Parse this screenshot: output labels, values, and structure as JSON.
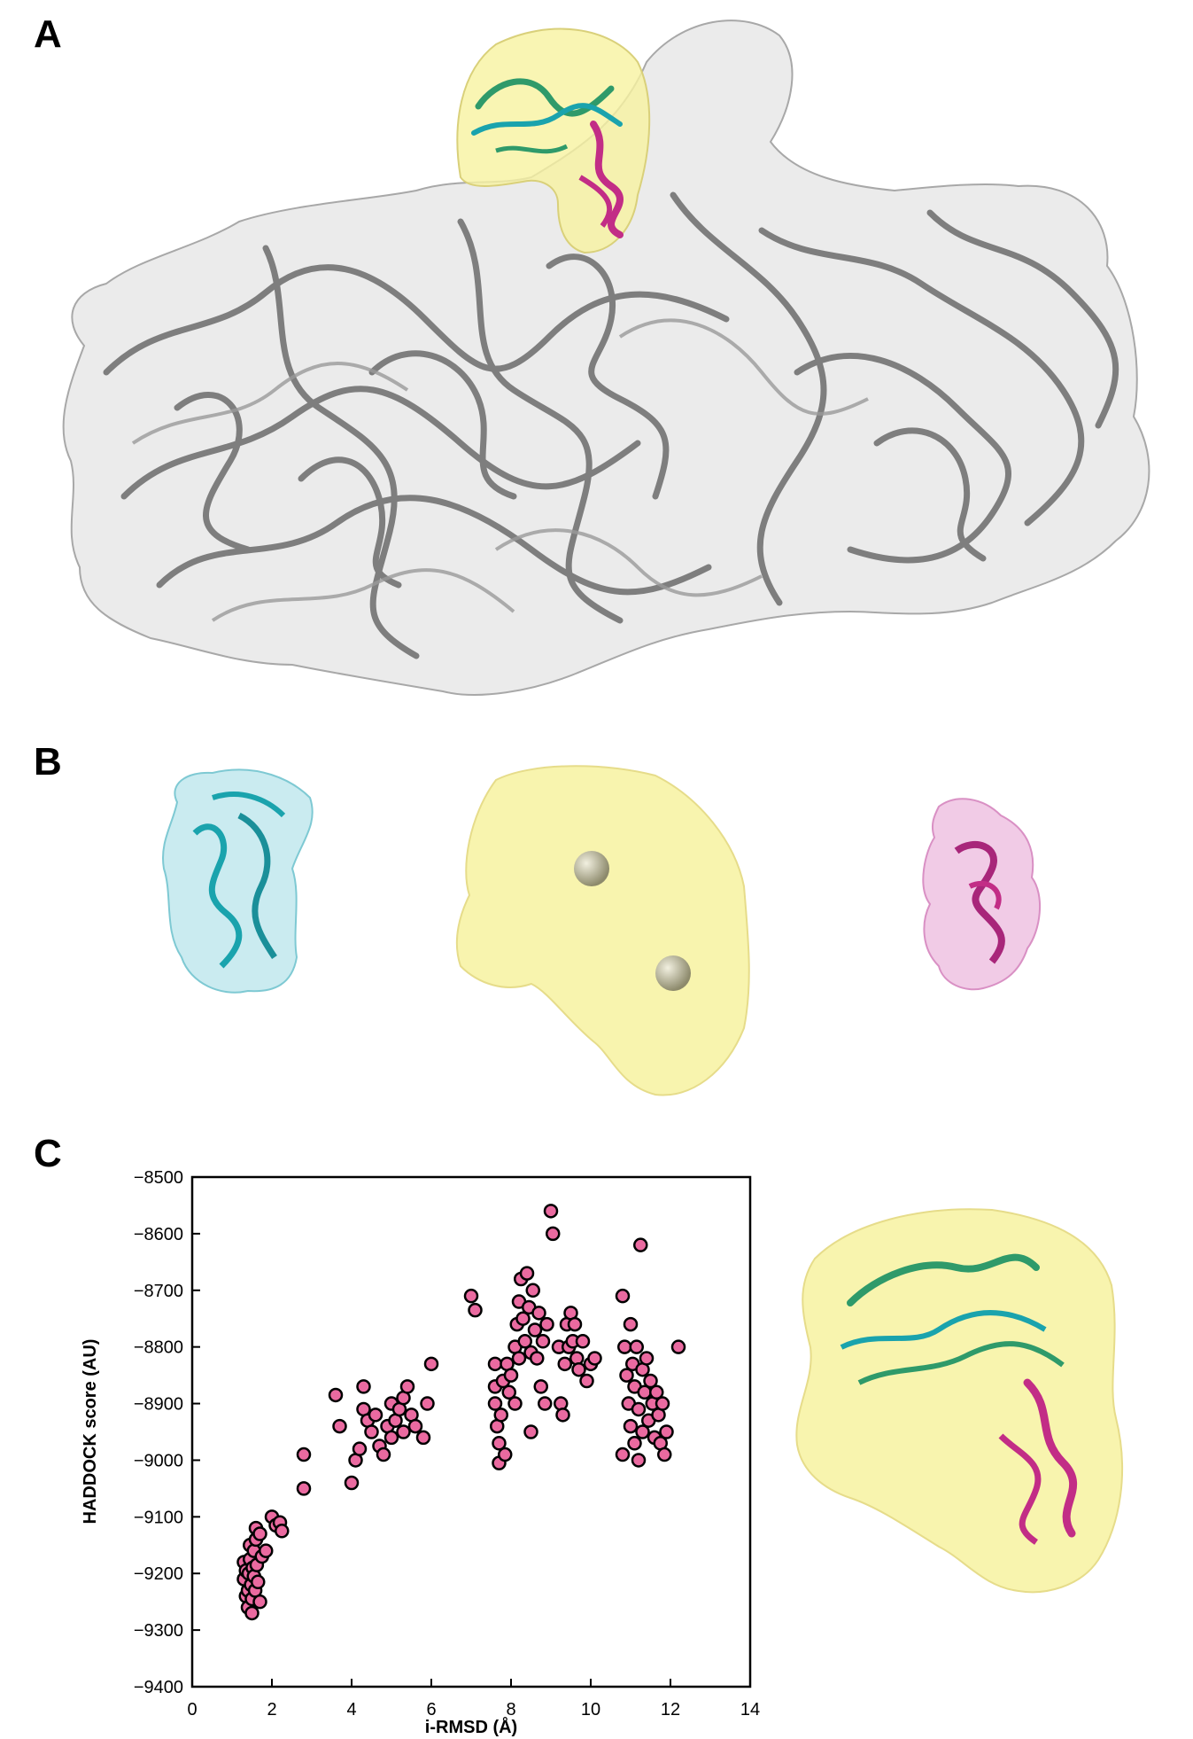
{
  "panels": {
    "a": "A",
    "b": "B",
    "c": "C"
  },
  "colors": {
    "density_gray": "#e4e4e4",
    "ribbon_gray": "#6b6b6b",
    "map_yellow": "#f7f2a0",
    "domain_cyan": "#1aa3ad",
    "domain_green": "#2f9a6a",
    "domain_magenta": "#c22d86",
    "point_fill": "#ea6aa0"
  },
  "chart_data": {
    "type": "scatter",
    "xlabel": "i-RMSD (Å)",
    "ylabel": "HADDOCK score (AU)",
    "xlim": [
      0,
      14
    ],
    "ylim": [
      -9400,
      -8500
    ],
    "xticks": [
      0,
      2,
      4,
      6,
      8,
      10,
      12,
      14
    ],
    "yticks": [
      -8500,
      -8600,
      -8700,
      -8800,
      -8900,
      -9000,
      -9100,
      -9200,
      -9300,
      -9400
    ],
    "grid": false,
    "legend": "none",
    "series": [
      {
        "points": [
          [
            1.3,
            -9180
          ],
          [
            1.3,
            -9210
          ],
          [
            1.35,
            -9240
          ],
          [
            1.35,
            -9195
          ],
          [
            1.4,
            -9230
          ],
          [
            1.4,
            -9260
          ],
          [
            1.42,
            -9200
          ],
          [
            1.45,
            -9150
          ],
          [
            1.45,
            -9175
          ],
          [
            1.48,
            -9220
          ],
          [
            1.5,
            -9270
          ],
          [
            1.5,
            -9245
          ],
          [
            1.52,
            -9190
          ],
          [
            1.55,
            -9160
          ],
          [
            1.55,
            -9205
          ],
          [
            1.58,
            -9230
          ],
          [
            1.6,
            -9120
          ],
          [
            1.6,
            -9140
          ],
          [
            1.62,
            -9185
          ],
          [
            1.65,
            -9215
          ],
          [
            1.7,
            -9130
          ],
          [
            1.7,
            -9250
          ],
          [
            1.75,
            -9170
          ],
          [
            1.85,
            -9160
          ],
          [
            2.0,
            -9100
          ],
          [
            2.1,
            -9115
          ],
          [
            2.2,
            -9110
          ],
          [
            2.25,
            -9125
          ],
          [
            2.8,
            -8990
          ],
          [
            2.8,
            -9050
          ],
          [
            3.6,
            -8885
          ],
          [
            3.7,
            -8940
          ],
          [
            4.0,
            -9040
          ],
          [
            4.1,
            -9000
          ],
          [
            4.2,
            -8980
          ],
          [
            4.3,
            -8870
          ],
          [
            4.3,
            -8910
          ],
          [
            4.4,
            -8930
          ],
          [
            4.5,
            -8950
          ],
          [
            4.6,
            -8920
          ],
          [
            4.7,
            -8975
          ],
          [
            4.8,
            -8990
          ],
          [
            4.9,
            -8940
          ],
          [
            5.0,
            -8900
          ],
          [
            5.0,
            -8960
          ],
          [
            5.1,
            -8930
          ],
          [
            5.2,
            -8910
          ],
          [
            5.3,
            -8890
          ],
          [
            5.3,
            -8950
          ],
          [
            5.4,
            -8870
          ],
          [
            5.5,
            -8920
          ],
          [
            5.6,
            -8940
          ],
          [
            5.8,
            -8960
          ],
          [
            5.9,
            -8900
          ],
          [
            6.0,
            -8830
          ],
          [
            7.0,
            -8710
          ],
          [
            7.1,
            -8735
          ],
          [
            7.6,
            -8830
          ],
          [
            7.6,
            -8870
          ],
          [
            7.6,
            -8900
          ],
          [
            7.65,
            -8940
          ],
          [
            7.7,
            -8970
          ],
          [
            7.7,
            -9005
          ],
          [
            7.75,
            -8920
          ],
          [
            7.8,
            -8860
          ],
          [
            7.85,
            -8990
          ],
          [
            7.9,
            -8830
          ],
          [
            7.95,
            -8880
          ],
          [
            8.0,
            -8850
          ],
          [
            8.1,
            -8900
          ],
          [
            8.1,
            -8800
          ],
          [
            8.15,
            -8760
          ],
          [
            8.2,
            -8820
          ],
          [
            8.2,
            -8720
          ],
          [
            8.25,
            -8680
          ],
          [
            8.3,
            -8750
          ],
          [
            8.35,
            -8790
          ],
          [
            8.4,
            -8670
          ],
          [
            8.45,
            -8730
          ],
          [
            8.5,
            -8810
          ],
          [
            8.5,
            -8950
          ],
          [
            8.55,
            -8700
          ],
          [
            8.6,
            -8770
          ],
          [
            8.65,
            -8820
          ],
          [
            8.7,
            -8740
          ],
          [
            8.75,
            -8870
          ],
          [
            8.8,
            -8790
          ],
          [
            8.85,
            -8900
          ],
          [
            8.9,
            -8760
          ],
          [
            9.0,
            -8560
          ],
          [
            9.05,
            -8600
          ],
          [
            9.2,
            -8800
          ],
          [
            9.25,
            -8900
          ],
          [
            9.3,
            -8920
          ],
          [
            9.35,
            -8830
          ],
          [
            9.4,
            -8760
          ],
          [
            9.45,
            -8800
          ],
          [
            9.5,
            -8740
          ],
          [
            9.55,
            -8790
          ],
          [
            9.6,
            -8760
          ],
          [
            9.65,
            -8820
          ],
          [
            9.7,
            -8840
          ],
          [
            9.8,
            -8790
          ],
          [
            9.9,
            -8860
          ],
          [
            10.0,
            -8830
          ],
          [
            10.1,
            -8820
          ],
          [
            10.8,
            -8710
          ],
          [
            10.8,
            -8990
          ],
          [
            10.85,
            -8800
          ],
          [
            10.9,
            -8850
          ],
          [
            10.95,
            -8900
          ],
          [
            11.0,
            -8760
          ],
          [
            11.0,
            -8940
          ],
          [
            11.05,
            -8830
          ],
          [
            11.1,
            -8870
          ],
          [
            11.1,
            -8970
          ],
          [
            11.15,
            -8800
          ],
          [
            11.2,
            -9000
          ],
          [
            11.2,
            -8910
          ],
          [
            11.25,
            -8620
          ],
          [
            11.3,
            -8840
          ],
          [
            11.3,
            -8950
          ],
          [
            11.35,
            -8880
          ],
          [
            11.4,
            -8820
          ],
          [
            11.45,
            -8930
          ],
          [
            11.5,
            -8860
          ],
          [
            11.55,
            -8900
          ],
          [
            11.6,
            -8960
          ],
          [
            11.65,
            -8880
          ],
          [
            11.7,
            -8920
          ],
          [
            11.75,
            -8970
          ],
          [
            11.8,
            -8900
          ],
          [
            11.85,
            -8990
          ],
          [
            11.9,
            -8950
          ],
          [
            12.2,
            -8800
          ]
        ]
      }
    ]
  }
}
